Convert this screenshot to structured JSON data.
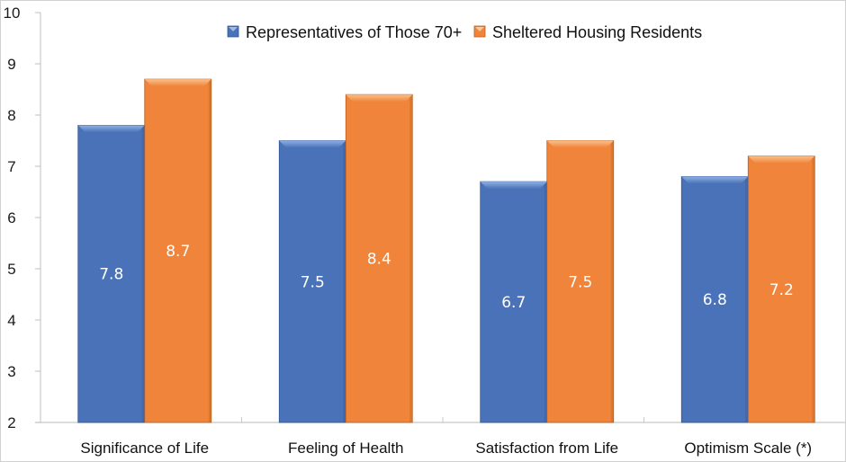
{
  "chart_data": {
    "type": "bar",
    "title": "",
    "xlabel": "",
    "ylabel": "",
    "ylim": [
      2,
      10
    ],
    "yticks": [
      2,
      3,
      4,
      5,
      6,
      7,
      8,
      9,
      10
    ],
    "grid": false,
    "legend_position": "top-center",
    "categories": [
      "Significance of Life",
      "Feeling of Health",
      "Satisfaction from Life",
      "Optimism Scale (*)"
    ],
    "series": [
      {
        "name": "Representatives of Those 70+",
        "color": "#4a72b8",
        "values": [
          7.8,
          7.5,
          6.7,
          6.8
        ],
        "labels": [
          "7.8",
          "7.5",
          "6.7",
          "6.8"
        ]
      },
      {
        "name": "Sheltered Housing Residents",
        "color": "#f0843a",
        "values": [
          8.7,
          8.4,
          7.5,
          7.2
        ],
        "labels": [
          "8.7",
          "8.4",
          "7.5",
          "7.2"
        ]
      }
    ]
  }
}
